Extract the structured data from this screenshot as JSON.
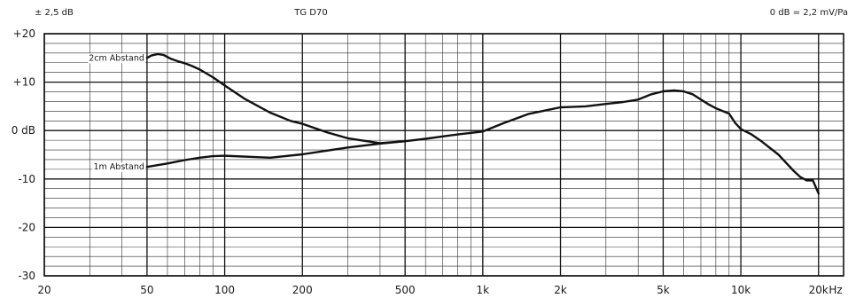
{
  "header": {
    "tolerance": "± 2,5 dB",
    "model": "TG D70",
    "reference": "0 dB = 2,2 mV/Pa"
  },
  "chart_data": {
    "type": "line",
    "title": "TG D70",
    "x_scale": "log",
    "xlim": [
      20,
      25000
    ],
    "ylim": [
      -30,
      20
    ],
    "grid": true,
    "x_unit": "Hz",
    "x_ticks": [
      {
        "value": 20,
        "label": "20"
      },
      {
        "value": 50,
        "label": "50"
      },
      {
        "value": 100,
        "label": "100"
      },
      {
        "value": 200,
        "label": "200"
      },
      {
        "value": 500,
        "label": "500"
      },
      {
        "value": 1000,
        "label": "1k"
      },
      {
        "value": 2000,
        "label": "2k"
      },
      {
        "value": 5000,
        "label": "5k"
      },
      {
        "value": 10000,
        "label": "10k"
      },
      {
        "value": 20000,
        "label": "20k"
      }
    ],
    "y_ticks": [
      {
        "value": 20,
        "label": "+20"
      },
      {
        "value": 10,
        "label": "+10"
      },
      {
        "value": 0,
        "label": "0 dB"
      },
      {
        "value": -10,
        "label": "-10"
      },
      {
        "value": -20,
        "label": "-20"
      },
      {
        "value": -30,
        "label": "-30"
      }
    ],
    "series": [
      {
        "name": "2cm Abstand",
        "x": [
          50,
          52,
          55,
          58,
          62,
          66,
          70,
          75,
          80,
          90,
          100,
          120,
          150,
          180,
          200,
          250,
          300,
          400,
          500
        ],
        "y": [
          15,
          15.5,
          15.8,
          15.6,
          14.8,
          14.3,
          13.9,
          13.3,
          12.6,
          11,
          9.3,
          6.5,
          3.7,
          2,
          1.4,
          -0.4,
          -1.6,
          -2.6,
          -2.2
        ]
      },
      {
        "name": "1m Abstand",
        "x": [
          50,
          60,
          70,
          80,
          90,
          100,
          150,
          200,
          300,
          400,
          500,
          600,
          700,
          800,
          1000,
          1200,
          1500,
          2000,
          2500,
          3000,
          3500,
          4000,
          4500,
          5000,
          5500,
          6000,
          6500,
          7000,
          7500,
          8000,
          9000,
          9500,
          10000,
          11000,
          12000,
          14000,
          16000,
          17000,
          18000,
          19000,
          20000
        ],
        "y": [
          -7.5,
          -6.8,
          -6.1,
          -5.6,
          -5.3,
          -5.2,
          -5.6,
          -4.9,
          -3.5,
          -2.7,
          -2.2,
          -1.7,
          -1.2,
          -0.8,
          -0.2,
          1.5,
          3.4,
          4.8,
          5,
          5.5,
          5.9,
          6.4,
          7.5,
          8.1,
          8.3,
          8.1,
          7.5,
          6.4,
          5.4,
          4.6,
          3.5,
          1.6,
          0.3,
          -0.8,
          -2.2,
          -5,
          -8.3,
          -9.6,
          -10.3,
          -10.3,
          -13
        ]
      }
    ]
  }
}
